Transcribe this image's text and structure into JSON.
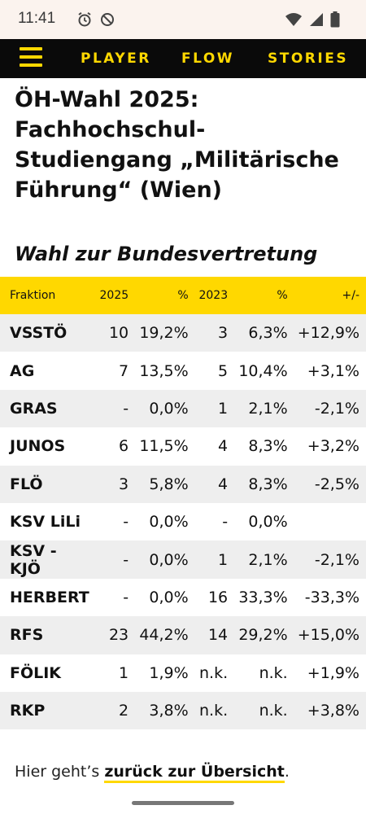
{
  "status_bar": {
    "time": "11:41",
    "left_icons": [
      "alarm-icon",
      "do-not-disturb-icon"
    ],
    "right_icons": [
      "wifi-icon",
      "signal-icon",
      "battery-icon"
    ]
  },
  "nav": {
    "menu_icon": "hamburger-menu-icon",
    "tabs": [
      {
        "label": "PLAYER"
      },
      {
        "label": "FLOW"
      },
      {
        "label": "STORIES"
      }
    ],
    "accent": "#ffd800",
    "background": "#0a0a0a"
  },
  "article": {
    "title": "ÖH-Wahl 2025: Fachhochschul-Studiengang „Militärische Führung“ (Wien)",
    "subtitle": "Wahl zur Bundesvertretung"
  },
  "table": {
    "headers": [
      "Fraktion",
      "2025",
      "%",
      "2023",
      "%",
      "+/-"
    ],
    "rows": [
      {
        "name": "VSSTÖ",
        "v2025": "10",
        "p2025": "19,2%",
        "v2023": "3",
        "p2023": "6,3%",
        "diff": "+12,9%"
      },
      {
        "name": "AG",
        "v2025": "7",
        "p2025": "13,5%",
        "v2023": "5",
        "p2023": "10,4%",
        "diff": "+3,1%"
      },
      {
        "name": "GRAS",
        "v2025": "-",
        "p2025": "0,0%",
        "v2023": "1",
        "p2023": "2,1%",
        "diff": "-2,1%"
      },
      {
        "name": "JUNOS",
        "v2025": "6",
        "p2025": "11,5%",
        "v2023": "4",
        "p2023": "8,3%",
        "diff": "+3,2%"
      },
      {
        "name": "FLÖ",
        "v2025": "3",
        "p2025": "5,8%",
        "v2023": "4",
        "p2023": "8,3%",
        "diff": "-2,5%"
      },
      {
        "name": "KSV LiLi",
        "v2025": "-",
        "p2025": "0,0%",
        "v2023": "-",
        "p2023": "0,0%",
        "diff": ""
      },
      {
        "name": "KSV - KJÖ",
        "v2025": "-",
        "p2025": "0,0%",
        "v2023": "1",
        "p2023": "2,1%",
        "diff": "-2,1%"
      },
      {
        "name": "HERBERT",
        "v2025": "-",
        "p2025": "0,0%",
        "v2023": "16",
        "p2023": "33,3%",
        "diff": "-33,3%"
      },
      {
        "name": "RFS",
        "v2025": "23",
        "p2025": "44,2%",
        "v2023": "14",
        "p2023": "29,2%",
        "diff": "+15,0%"
      },
      {
        "name": "FÖLIK",
        "v2025": "1",
        "p2025": "1,9%",
        "v2023": "n.k.",
        "p2023": "n.k.",
        "diff": "+1,9%"
      },
      {
        "name": "RKP",
        "v2025": "2",
        "p2025": "3,8%",
        "v2023": "n.k.",
        "p2023": "n.k.",
        "diff": "+3,8%"
      }
    ]
  },
  "footer": {
    "prefix": "Hier geht’s ",
    "link_text": "zurück zur Übersicht",
    "suffix": "."
  }
}
